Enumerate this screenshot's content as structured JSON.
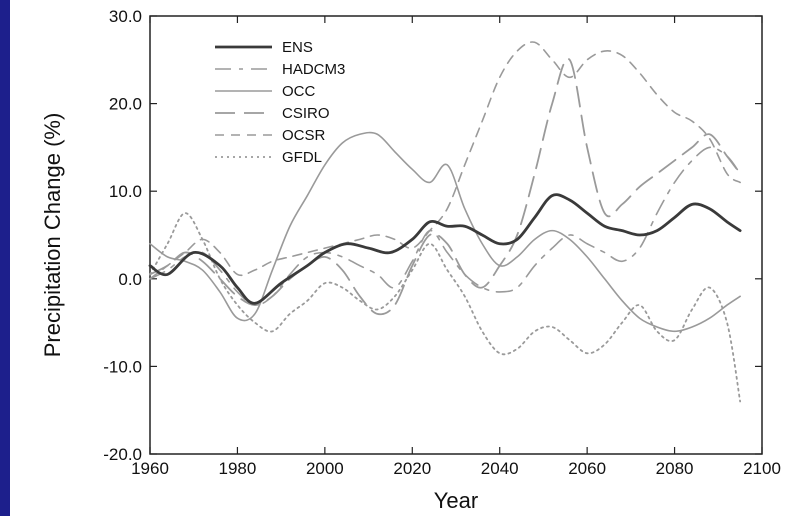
{
  "colors": {
    "background": "#1d1f8c",
    "plot": "#ffffff",
    "ens": "#3a3a3a",
    "others": "#9a9a9a"
  },
  "chart_data": {
    "type": "line",
    "xlabel": "Year",
    "ylabel": "Precipitation Change (%)",
    "xlim": [
      1960,
      2100
    ],
    "ylim": [
      -20,
      30
    ],
    "xticks": [
      1960,
      1980,
      2000,
      2020,
      2040,
      2060,
      2080,
      2100
    ],
    "yticks": [
      -20,
      -10,
      0,
      10,
      20,
      30
    ],
    "ytick_labels": [
      "-20.0",
      "-10.0",
      "0.0",
      "10.0",
      "20.0",
      "30.0"
    ],
    "grid": false,
    "legend_position": "top-left",
    "series": [
      {
        "name": "ENS",
        "style": "solid-bold",
        "color": "#3a3a3a",
        "x": [
          1960,
          1964,
          1970,
          1976,
          1980,
          1984,
          1990,
          1996,
          2000,
          2005,
          2010,
          2015,
          2020,
          2024,
          2028,
          2032,
          2036,
          2040,
          2044,
          2048,
          2052,
          2056,
          2060,
          2064,
          2068,
          2072,
          2076,
          2080,
          2084,
          2088,
          2092,
          2095
        ],
        "values": [
          1.5,
          0.5,
          3.0,
          1.5,
          -1.0,
          -2.8,
          -0.5,
          1.5,
          3.0,
          4.0,
          3.5,
          3.0,
          4.5,
          6.5,
          6.0,
          6.0,
          5.0,
          4.0,
          4.5,
          7.0,
          9.5,
          9.0,
          7.5,
          6.0,
          5.5,
          5.0,
          5.5,
          7.0,
          8.5,
          8.0,
          6.5,
          5.5
        ]
      },
      {
        "name": "HADCM3",
        "style": "long-dash",
        "color": "#9a9a9a",
        "x": [
          1960,
          1964,
          1968,
          1972,
          1976,
          1980,
          1984,
          1988,
          1992,
          1996,
          2000,
          2004,
          2008,
          2012,
          2016,
          2020,
          2024,
          2028,
          2032,
          2036,
          2040,
          2044,
          2048,
          2052,
          2056,
          2060,
          2064,
          2068,
          2072,
          2076,
          2080,
          2084,
          2088,
          2092,
          2095
        ],
        "values": [
          0.0,
          1.0,
          2.5,
          3.0,
          1.0,
          -1.5,
          -3.0,
          -2.0,
          0.5,
          2.5,
          3.0,
          2.5,
          1.5,
          0.5,
          -1.0,
          2.0,
          5.5,
          3.0,
          0.5,
          -1.0,
          -1.5,
          -1.0,
          1.5,
          3.5,
          5.0,
          4.0,
          3.0,
          2.0,
          3.5,
          7.5,
          11.0,
          13.5,
          15.0,
          14.0,
          12.0
        ]
      },
      {
        "name": "OCC",
        "style": "solid",
        "color": "#9a9a9a",
        "x": [
          1960,
          1964,
          1968,
          1972,
          1976,
          1980,
          1984,
          1988,
          1992,
          1996,
          2000,
          2004,
          2008,
          2012,
          2016,
          2020,
          2024,
          2028,
          2032,
          2036,
          2040,
          2044,
          2048,
          2052,
          2056,
          2060,
          2064,
          2068,
          2072,
          2076,
          2080,
          2084,
          2088,
          2092,
          2095
        ],
        "values": [
          4.0,
          2.5,
          2.0,
          1.0,
          -1.5,
          -4.5,
          -4.0,
          1.0,
          6.0,
          9.5,
          13.0,
          15.5,
          16.5,
          16.5,
          14.5,
          12.5,
          11.0,
          13.0,
          8.0,
          4.0,
          1.5,
          2.5,
          4.5,
          5.5,
          4.5,
          2.5,
          0.0,
          -2.5,
          -4.5,
          -5.5,
          -6.0,
          -5.5,
          -4.5,
          -3.0,
          -2.0
        ]
      },
      {
        "name": "CSIRO",
        "style": "dash",
        "color": "#9a9a9a",
        "x": [
          1960,
          1964,
          1968,
          1972,
          1976,
          1980,
          1984,
          1988,
          1992,
          1996,
          2000,
          2004,
          2008,
          2012,
          2016,
          2020,
          2024,
          2028,
          2032,
          2036,
          2040,
          2044,
          2048,
          2052,
          2056,
          2060,
          2064,
          2068,
          2072,
          2076,
          2080,
          2084,
          2088,
          2092,
          2095
        ],
        "values": [
          0.5,
          1.5,
          3.0,
          2.0,
          0.0,
          -2.0,
          -3.0,
          -2.0,
          0.0,
          1.5,
          2.5,
          1.0,
          -2.0,
          -4.0,
          -3.0,
          1.5,
          5.0,
          4.0,
          0.5,
          -1.0,
          1.5,
          5.0,
          12.0,
          20.0,
          25.0,
          15.0,
          7.5,
          8.5,
          10.5,
          12.0,
          13.5,
          15.0,
          16.5,
          14.0,
          12.0
        ]
      },
      {
        "name": "OCSR",
        "style": "short-dash",
        "color": "#9a9a9a",
        "x": [
          1960,
          1964,
          1968,
          1972,
          1976,
          1980,
          1984,
          1988,
          1992,
          1996,
          2000,
          2004,
          2008,
          2012,
          2016,
          2020,
          2024,
          2028,
          2032,
          2036,
          2040,
          2044,
          2048,
          2052,
          2056,
          2060,
          2064,
          2068,
          2072,
          2076,
          2080,
          2084,
          2088,
          2092,
          2095
        ],
        "values": [
          0.0,
          1.5,
          3.0,
          4.5,
          3.0,
          0.5,
          1.0,
          2.0,
          2.5,
          3.0,
          3.5,
          4.0,
          4.5,
          5.0,
          4.5,
          3.5,
          5.5,
          8.0,
          13.0,
          18.0,
          23.0,
          26.0,
          27.0,
          25.0,
          23.0,
          25.0,
          26.0,
          25.5,
          23.5,
          21.0,
          19.0,
          18.0,
          16.0,
          12.0,
          11.0
        ]
      },
      {
        "name": "GFDL",
        "style": "dotted",
        "color": "#9a9a9a",
        "x": [
          1960,
          1964,
          1968,
          1972,
          1976,
          1980,
          1984,
          1988,
          1992,
          1996,
          2000,
          2004,
          2008,
          2012,
          2016,
          2020,
          2024,
          2028,
          2032,
          2036,
          2040,
          2044,
          2048,
          2052,
          2056,
          2060,
          2064,
          2068,
          2072,
          2076,
          2080,
          2084,
          2088,
          2092,
          2095
        ],
        "values": [
          0.5,
          4.0,
          7.5,
          4.5,
          0.0,
          -3.0,
          -5.0,
          -6.0,
          -4.0,
          -2.5,
          -0.5,
          -1.0,
          -2.5,
          -3.5,
          -2.0,
          1.0,
          4.0,
          1.0,
          -2.0,
          -6.0,
          -8.5,
          -8.0,
          -6.0,
          -5.5,
          -7.0,
          -8.5,
          -7.5,
          -5.0,
          -3.0,
          -6.0,
          -7.0,
          -3.5,
          -1.0,
          -5.0,
          -14.0
        ]
      }
    ]
  }
}
